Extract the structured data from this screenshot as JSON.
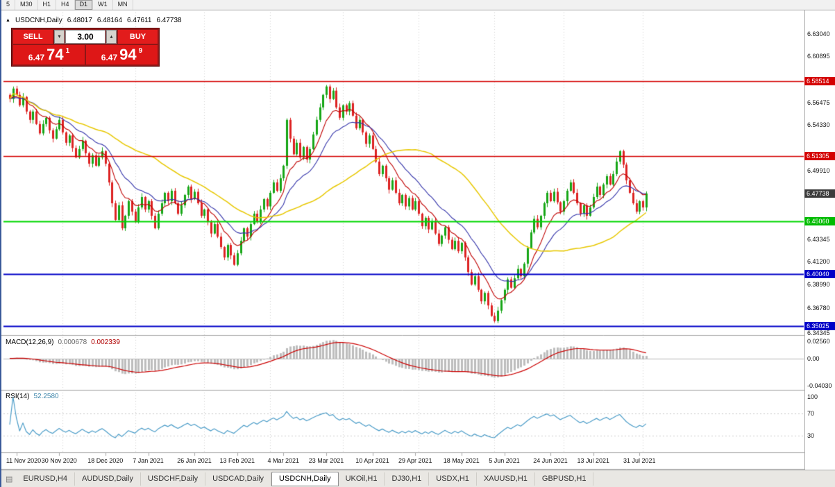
{
  "toolbar": {
    "buttons": [
      "5",
      "M30",
      "H1",
      "H4",
      "D1",
      "W1",
      "MN"
    ],
    "active": "D1"
  },
  "header": {
    "symbol_period": "USDCNH,Daily",
    "open": "6.48017",
    "high": "6.48164",
    "low": "6.47611",
    "close": "6.47738"
  },
  "trade_panel": {
    "sell_label": "SELL",
    "buy_label": "BUY",
    "volume": "3.00",
    "sell_price_prefix": "6.47",
    "sell_price_big": "74",
    "sell_price_sup": "1",
    "buy_price_prefix": "6.47",
    "buy_price_big": "94",
    "buy_price_sup": "9"
  },
  "y_axis": {
    "ticks": [
      {
        "label": "6.63040",
        "value": 6.6304
      },
      {
        "label": "6.60895",
        "value": 6.60895
      },
      {
        "label": "6.56475",
        "value": 6.56475
      },
      {
        "label": "6.54330",
        "value": 6.5433
      },
      {
        "label": "6.49910",
        "value": 6.4991
      },
      {
        "label": "6.43345",
        "value": 6.43345
      },
      {
        "label": "6.41200",
        "value": 6.412
      },
      {
        "label": "6.38990",
        "value": 6.3899
      },
      {
        "label": "6.36780",
        "value": 6.3678
      },
      {
        "label": "6.34345",
        "value": 6.34345
      }
    ],
    "badges": [
      {
        "label": "6.58514",
        "value": 6.58514,
        "bg": "#d40000"
      },
      {
        "label": "6.51305",
        "value": 6.51305,
        "bg": "#d40000"
      },
      {
        "label": "6.47738",
        "value": 6.47738,
        "bg": "#3c3c3c"
      },
      {
        "label": "6.45060",
        "value": 6.4506,
        "bg": "#00bb00"
      },
      {
        "label": "6.40040",
        "value": 6.4004,
        "bg": "#0000c8"
      },
      {
        "label": "6.35025",
        "value": 6.35025,
        "bg": "#0000c8"
      }
    ]
  },
  "macd_panel": {
    "label": "MACD(12,26,9)",
    "value_main": "0.000678",
    "value_signal": "0.002339",
    "axis": [
      {
        "label": "0.02560",
        "value": 0.0256
      },
      {
        "label": "0.00",
        "value": 0
      },
      {
        "label": "-0.04030",
        "value": -0.0403
      }
    ]
  },
  "rsi_panel": {
    "label": "RSI(14)",
    "value": "52.2580",
    "axis": [
      {
        "label": "100",
        "value": 100
      },
      {
        "label": "70",
        "value": 70
      },
      {
        "label": "30",
        "value": 30
      }
    ]
  },
  "bottom_tabs": {
    "tabs": [
      {
        "label": "EURUSD,H4",
        "active": false
      },
      {
        "label": "AUDUSD,Daily",
        "active": false
      },
      {
        "label": "USDCHF,Daily",
        "active": false
      },
      {
        "label": "USDCAD,Daily",
        "active": false
      },
      {
        "label": "USDCNH,Daily",
        "active": true
      },
      {
        "label": "UKOil,H1",
        "active": false
      },
      {
        "label": "DJ30,H1",
        "active": false
      },
      {
        "label": "USDX,H1",
        "active": false
      },
      {
        "label": "XAUUSD,H1",
        "active": false
      },
      {
        "label": "GBPUSD,H1",
        "active": false
      }
    ]
  },
  "colors": {
    "up": "#16a616",
    "down": "#dd2222",
    "ma_fast": "#c00000",
    "ma_mid": "#3333aa",
    "ma_slow": "#e8c800",
    "macd_hist": "#bdbdbd",
    "macd_signal": "#cc0000",
    "rsi": "#4a9cc8"
  },
  "chart_data": {
    "type": "candlestick",
    "symbol": "USDCNH",
    "timeframe": "Daily",
    "title": "USDCNH,Daily",
    "last_ohlc": {
      "open": 6.48017,
      "high": 6.48164,
      "low": 6.47611,
      "close": 6.47738
    },
    "y_range": [
      6.3429,
      6.651
    ],
    "closes": [
      6.568,
      6.578,
      6.572,
      6.562,
      6.57,
      6.556,
      6.548,
      6.556,
      6.544,
      6.535,
      6.544,
      6.55,
      6.538,
      6.53,
      6.539,
      6.548,
      6.536,
      6.526,
      6.533,
      6.521,
      6.512,
      6.52,
      6.528,
      6.516,
      6.506,
      6.514,
      6.504,
      6.512,
      6.518,
      6.506,
      6.488,
      6.468,
      6.452,
      6.466,
      6.444,
      6.456,
      6.47,
      6.46,
      6.45,
      6.464,
      6.474,
      6.462,
      6.47,
      6.456,
      6.444,
      6.458,
      6.468,
      6.478,
      6.47,
      6.48,
      6.468,
      6.458,
      6.466,
      6.476,
      6.484,
      6.472,
      6.479,
      6.468,
      6.456,
      6.462,
      6.45,
      6.439,
      6.448,
      6.436,
      6.426,
      6.416,
      6.428,
      6.418,
      6.409,
      6.42,
      6.432,
      6.444,
      6.436,
      6.448,
      6.458,
      6.45,
      6.462,
      6.472,
      6.465,
      6.478,
      6.488,
      6.48,
      6.492,
      6.504,
      6.548,
      6.53,
      6.515,
      6.526,
      6.512,
      6.522,
      6.51,
      6.52,
      6.534,
      6.548,
      6.56,
      6.572,
      6.58,
      6.568,
      6.576,
      6.56,
      6.55,
      6.562,
      6.556,
      6.564,
      6.552,
      6.54,
      6.548,
      6.536,
      6.525,
      6.533,
      6.52,
      6.508,
      6.496,
      6.504,
      6.492,
      6.481,
      6.49,
      6.478,
      6.468,
      6.476,
      6.465,
      6.473,
      6.462,
      6.47,
      6.458,
      6.446,
      6.454,
      6.443,
      6.451,
      6.439,
      6.429,
      6.437,
      6.445,
      6.433,
      6.424,
      6.432,
      6.422,
      6.43,
      6.416,
      6.402,
      6.39,
      6.398,
      6.385,
      6.374,
      6.382,
      6.37,
      6.36,
      6.355,
      6.365,
      6.375,
      6.385,
      6.395,
      6.387,
      6.396,
      6.405,
      6.398,
      6.41,
      6.425,
      6.44,
      6.453,
      6.445,
      6.456,
      6.468,
      6.478,
      6.47,
      6.479,
      6.469,
      6.46,
      6.47,
      6.48,
      6.488,
      6.478,
      6.468,
      6.458,
      6.466,
      6.456,
      6.464,
      6.474,
      6.484,
      6.476,
      6.486,
      6.494,
      6.486,
      6.496,
      6.508,
      6.518,
      6.505,
      6.49,
      6.478,
      6.468,
      6.46,
      6.47,
      6.464,
      6.47738
    ],
    "x_ticks": [
      {
        "label": "11 Nov 2020",
        "index": 2
      },
      {
        "label": "30 Nov 2020",
        "index": 15
      },
      {
        "label": "18 Dec 2020",
        "index": 29
      },
      {
        "label": "7 Jan 2021",
        "index": 42
      },
      {
        "label": "26 Jan 2021",
        "index": 56
      },
      {
        "label": "13 Feb 2021",
        "index": 69
      },
      {
        "label": "4 Mar 2021",
        "index": 83
      },
      {
        "label": "23 Mar 2021",
        "index": 96
      },
      {
        "label": "10 Apr 2021",
        "index": 110
      },
      {
        "label": "29 Apr 2021",
        "index": 123
      },
      {
        "label": "18 May 2021",
        "index": 137
      },
      {
        "label": "5 Jun 2021",
        "index": 150
      },
      {
        "label": "24 Jun 2021",
        "index": 164
      },
      {
        "label": "13 Jul 2021",
        "index": 177
      },
      {
        "label": "31 Jul 2021",
        "index": 191
      }
    ],
    "month_separator_indices": [
      16,
      38,
      59,
      79,
      101,
      124,
      147,
      168,
      192
    ],
    "hlines": [
      {
        "price": 6.58514,
        "color": "#d40000",
        "width": 1.5
      },
      {
        "price": 6.51305,
        "color": "#d40000",
        "width": 1.5
      },
      {
        "price": 6.4506,
        "color": "#00d800",
        "width": 2
      },
      {
        "price": 6.4004,
        "color": "#0000c8",
        "width": 2
      },
      {
        "price": 6.35025,
        "color": "#0000c8",
        "width": 2
      }
    ],
    "moving_averages": [
      {
        "type": "ema",
        "period": 9,
        "color": "#c00000"
      },
      {
        "type": "ema",
        "period": 18,
        "color": "#3333aa"
      },
      {
        "type": "sma",
        "period": 45,
        "color": "#e8c800"
      }
    ],
    "indicators": {
      "macd": {
        "params": [
          12,
          26,
          9
        ],
        "value_main": 0.000678,
        "value_signal": 0.002339
      },
      "rsi": {
        "period": 14,
        "value": 52.258
      }
    }
  }
}
